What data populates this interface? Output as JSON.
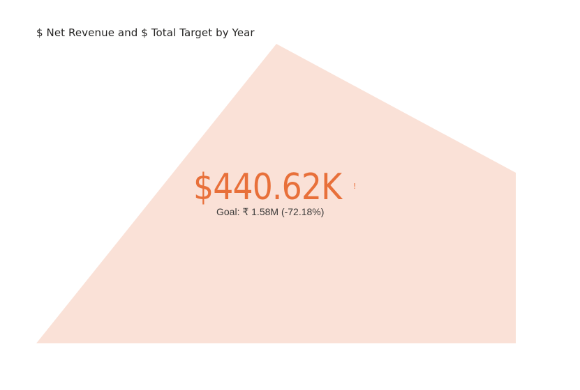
{
  "colors": {
    "area_fill": "#fae1d7",
    "kpi_value": "#e8703a",
    "title": "#252423",
    "goal_text": "#3b3a39"
  },
  "chart_data": {
    "type": "area",
    "title": "$ Net Revenue and $ Total Target by Year",
    "kpi": {
      "value_label": "$440.62K",
      "goal_label": "Goal: ₹ 1.58M (-72.18%)",
      "status_icon": "exclamation-icon"
    },
    "grid": false,
    "legend": "none"
  }
}
